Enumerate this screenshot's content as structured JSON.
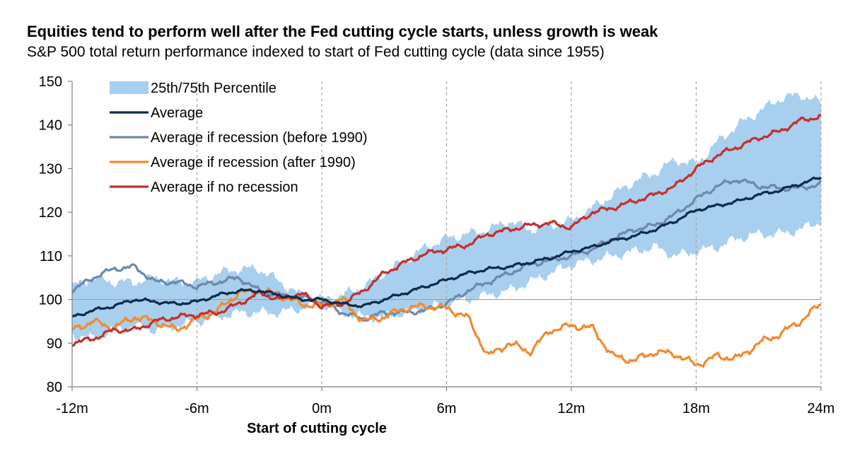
{
  "chart_data": {
    "type": "line",
    "title": "Equities tend to perform well after the Fed cutting cycle starts, unless growth is weak",
    "subtitle": "S&P 500 total return performance indexed to start of Fed cutting cycle (data since 1955)",
    "xlabel": "Start of cutting cycle",
    "ylabel": "",
    "xlim": [
      -12,
      24
    ],
    "ylim": [
      80,
      150
    ],
    "x_ticks": [
      -12,
      -6,
      0,
      6,
      12,
      18,
      24
    ],
    "x_tick_labels": [
      "-12m",
      "-6m",
      "0m",
      "6m",
      "12m",
      "18m",
      "24m"
    ],
    "y_ticks": [
      80,
      90,
      100,
      110,
      120,
      130,
      140,
      150
    ],
    "y_tick_labels": [
      "80",
      "90",
      "100",
      "110",
      "120",
      "130",
      "140",
      "150"
    ],
    "reference_line_y": 100,
    "vertical_gridlines": [
      -6,
      0,
      6,
      12,
      18,
      24
    ],
    "legend_position": "top-left",
    "band": {
      "name": "25th/75th Percentile",
      "color": "#a9cfee",
      "x": [
        -12,
        -11,
        -10,
        -9,
        -8,
        -7,
        -6,
        -5,
        -4,
        -3,
        -2,
        -1,
        0,
        1,
        2,
        3,
        4,
        5,
        6,
        7,
        8,
        9,
        10,
        11,
        12,
        13,
        14,
        15,
        16,
        17,
        18,
        19,
        20,
        21,
        22,
        23,
        24
      ],
      "lower": [
        92,
        91,
        93,
        94,
        93,
        94,
        95,
        96,
        97,
        97,
        97,
        98,
        99,
        97,
        96,
        96,
        97,
        98,
        99,
        100,
        101,
        102,
        104,
        106,
        108,
        109,
        110,
        111,
        112,
        110,
        111,
        112,
        114,
        115,
        115,
        116,
        118
      ],
      "upper": [
        103,
        105,
        104,
        104,
        105,
        104,
        104,
        106,
        107,
        107,
        104,
        101,
        100,
        101,
        103,
        106,
        109,
        112,
        114,
        115,
        116,
        118,
        116,
        117,
        118,
        121,
        124,
        127,
        129,
        132,
        131,
        136,
        140,
        143,
        146,
        147,
        145
      ]
    },
    "series": [
      {
        "name": "Average",
        "color": "#0d2b4a",
        "x": [
          -12,
          -11,
          -10,
          -9,
          -8,
          -7,
          -6,
          -5,
          -4,
          -3,
          -2,
          -1,
          0,
          1,
          2,
          3,
          4,
          5,
          6,
          7,
          8,
          9,
          10,
          11,
          12,
          13,
          14,
          15,
          16,
          17,
          18,
          19,
          20,
          21,
          22,
          23,
          24
        ],
        "values": [
          96,
          97.5,
          98.5,
          100,
          99.5,
          99,
          99.5,
          101,
          102,
          102,
          101,
          100,
          100,
          99,
          98.5,
          100,
          101.5,
          103,
          104.5,
          106,
          107,
          107.5,
          108.5,
          109.5,
          111,
          112,
          113.5,
          114.5,
          116,
          118,
          120.5,
          121.5,
          122.5,
          124,
          125,
          126.5,
          128
        ]
      },
      {
        "name": "Average if recession (before 1990)",
        "color": "#6d88ad",
        "x": [
          -12,
          -11,
          -10,
          -9,
          -8,
          -7,
          -6,
          -5,
          -4,
          -3,
          -2,
          -1,
          0,
          1,
          2,
          3,
          4,
          5,
          6,
          7,
          8,
          9,
          10,
          11,
          12,
          13,
          14,
          15,
          16,
          17,
          18,
          19,
          20,
          21,
          22,
          23,
          24
        ],
        "values": [
          102,
          105,
          107,
          107.5,
          104,
          104,
          103,
          104,
          105,
          102,
          101,
          100.5,
          99.5,
          97,
          95.5,
          97,
          97,
          97.5,
          99,
          102,
          104,
          106,
          108,
          109,
          110,
          111.5,
          114,
          116,
          117,
          119.5,
          123,
          126,
          127.5,
          126,
          125.5,
          125.5,
          126.5
        ]
      },
      {
        "name": "Average if recession (after 1990)",
        "color": "#f28a2e",
        "x": [
          -12,
          -11,
          -10,
          -9,
          -8,
          -7,
          -6,
          -5,
          -4,
          -3,
          -2,
          -1,
          0,
          1,
          2,
          3,
          4,
          5,
          6,
          7,
          8,
          9,
          10,
          11,
          12,
          13,
          14,
          15,
          16,
          17,
          18,
          19,
          20,
          21,
          22,
          23,
          24
        ],
        "values": [
          93,
          95,
          93.5,
          96,
          95,
          93,
          95.5,
          97.5,
          101.5,
          102,
          101,
          99,
          98.5,
          100,
          95,
          96,
          98,
          98.5,
          98,
          96,
          87,
          90,
          88,
          93,
          94,
          93.5,
          87,
          86,
          88,
          87.5,
          85,
          87,
          86.5,
          90,
          92,
          95,
          99
        ]
      },
      {
        "name": "Average if no recession",
        "color": "#c4302c",
        "x": [
          -12,
          -11,
          -10,
          -9,
          -8,
          -7,
          -6,
          -5,
          -4,
          -3,
          -2,
          -1,
          0,
          1,
          2,
          3,
          4,
          5,
          6,
          7,
          8,
          9,
          10,
          11,
          12,
          13,
          14,
          15,
          16,
          17,
          18,
          19,
          20,
          21,
          22,
          23,
          24
        ],
        "values": [
          90,
          91,
          93,
          93,
          95,
          96,
          96.5,
          97,
          99,
          101.5,
          100,
          101.5,
          98.5,
          99,
          102,
          106,
          108.5,
          110.5,
          111.5,
          112.5,
          115,
          116,
          117,
          117.5,
          116.5,
          120,
          121,
          122.5,
          124,
          126,
          130,
          133,
          135,
          137,
          138.5,
          141,
          142
        ]
      }
    ],
    "legend_order": [
      "band",
      0,
      1,
      2,
      3
    ]
  }
}
